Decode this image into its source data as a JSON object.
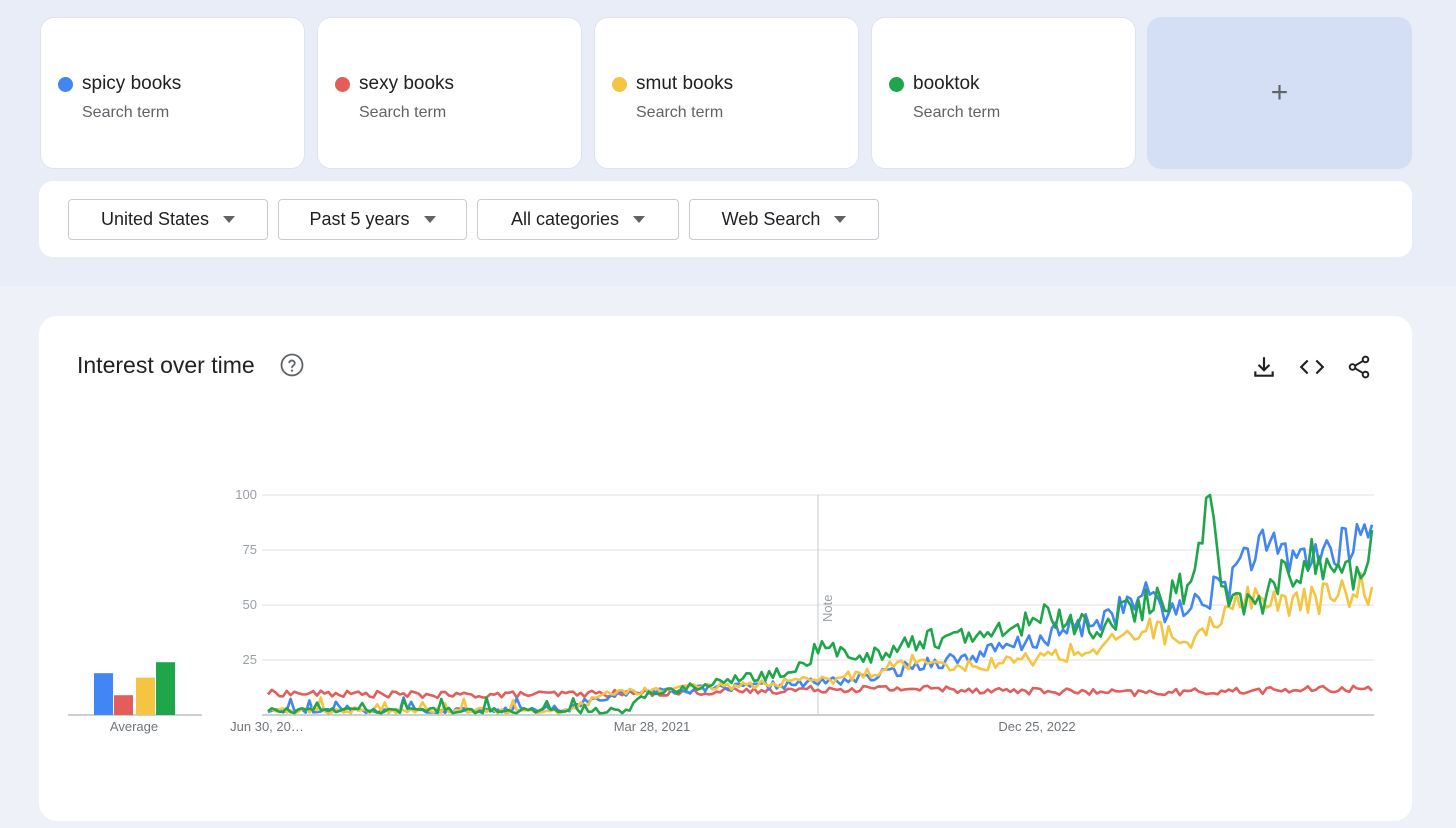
{
  "terms": [
    {
      "label": "spicy books",
      "sub": "Search term",
      "color": "#4285f4"
    },
    {
      "label": "sexy books",
      "sub": "Search term",
      "color": "#e35d5b"
    },
    {
      "label": "smut books",
      "sub": "Search term",
      "color": "#f4c542"
    },
    {
      "label": "booktok",
      "sub": "Search term",
      "color": "#1fa64a"
    }
  ],
  "add_label": "+",
  "filters": {
    "region": "United States",
    "time": "Past 5 years",
    "category": "All categories",
    "search_type": "Web Search"
  },
  "chart_card": {
    "title": "Interest over time",
    "average_label": "Average"
  },
  "chart_data": {
    "type": "line",
    "title": "Interest over time",
    "y_ticks": [
      "100",
      "75",
      "50",
      "25"
    ],
    "ylim": [
      0,
      100
    ],
    "x_tick_labels": [
      "Jun 30, 20…",
      "Mar 28, 2021",
      "Dec 25, 2022"
    ],
    "note_label": "Note",
    "grid": true,
    "averages": [
      {
        "name": "spicy books",
        "value": 19
      },
      {
        "name": "sexy books",
        "value": 9
      },
      {
        "name": "smut books",
        "value": 17
      },
      {
        "name": "booktok",
        "value": 24
      }
    ],
    "series": [
      {
        "name": "spicy books",
        "color": "#4285f4",
        "anchors": [
          [
            0,
            2
          ],
          [
            55,
            2
          ],
          [
            80,
            3
          ],
          [
            85,
            7
          ],
          [
            100,
            11
          ],
          [
            120,
            12
          ],
          [
            140,
            14
          ],
          [
            160,
            17
          ],
          [
            175,
            24
          ],
          [
            185,
            26
          ],
          [
            200,
            32
          ],
          [
            220,
            43
          ],
          [
            235,
            55
          ],
          [
            240,
            45
          ],
          [
            255,
            60
          ],
          [
            260,
            75
          ],
          [
            272,
            72
          ],
          [
            285,
            75
          ],
          [
            293,
            84
          ]
        ]
      },
      {
        "name": "sexy books",
        "color": "#e35d5b",
        "anchors": [
          [
            0,
            10
          ],
          [
            50,
            9
          ],
          [
            100,
            10
          ],
          [
            130,
            11
          ],
          [
            150,
            12
          ],
          [
            175,
            12
          ],
          [
            200,
            11
          ],
          [
            230,
            10
          ],
          [
            260,
            11
          ],
          [
            293,
            12
          ]
        ]
      },
      {
        "name": "smut books",
        "color": "#f4c542",
        "anchors": [
          [
            0,
            2
          ],
          [
            80,
            2
          ],
          [
            90,
            10
          ],
          [
            110,
            12
          ],
          [
            130,
            14
          ],
          [
            150,
            16
          ],
          [
            175,
            26
          ],
          [
            185,
            22
          ],
          [
            200,
            25
          ],
          [
            220,
            30
          ],
          [
            235,
            40
          ],
          [
            245,
            30
          ],
          [
            258,
            55
          ],
          [
            270,
            50
          ],
          [
            285,
            55
          ],
          [
            293,
            58
          ]
        ]
      },
      {
        "name": "booktok",
        "color": "#1fa64a",
        "anchors": [
          [
            0,
            2
          ],
          [
            95,
            2
          ],
          [
            100,
            9
          ],
          [
            120,
            15
          ],
          [
            140,
            20
          ],
          [
            146,
            30
          ],
          [
            160,
            27
          ],
          [
            175,
            35
          ],
          [
            190,
            35
          ],
          [
            205,
            45
          ],
          [
            220,
            40
          ],
          [
            230,
            48
          ],
          [
            240,
            55
          ],
          [
            246,
            60
          ],
          [
            250,
            100
          ],
          [
            253,
            60
          ],
          [
            262,
            48
          ],
          [
            270,
            65
          ],
          [
            278,
            72
          ],
          [
            285,
            60
          ],
          [
            293,
            77
          ]
        ]
      }
    ]
  }
}
